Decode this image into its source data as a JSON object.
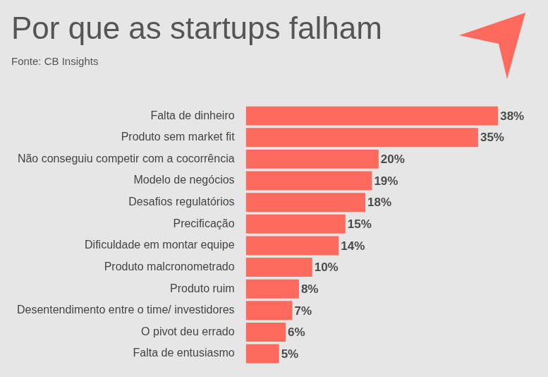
{
  "chart_data": {
    "type": "bar",
    "title": "Por que as startups falham",
    "subtitle": "Fonte: CB Insights",
    "categories": [
      "Falta de dinheiro",
      "Produto sem market fit",
      "Não conseguiu competir com a cocorrência",
      "Modelo de negócios",
      "Desafios regulatórios",
      "Precificação",
      "Dificuldade em montar equipe",
      "Produto malcronometrado",
      "Produto ruim",
      "Desentendimento entre o time/ investidores",
      "O pivot deu errado",
      "Falta de entusiasmo"
    ],
    "values": [
      38,
      35,
      20,
      19,
      18,
      15,
      14,
      10,
      8,
      7,
      6,
      5
    ],
    "value_labels": [
      "38%",
      "35%",
      "20%",
      "19%",
      "18%",
      "15%",
      "14%",
      "10%",
      "8%",
      "7%",
      "6%",
      "5%"
    ],
    "color": "#fe6a5e",
    "orientation": "horizontal",
    "data_labels": true,
    "tick_labels": "y",
    "grid": false
  }
}
